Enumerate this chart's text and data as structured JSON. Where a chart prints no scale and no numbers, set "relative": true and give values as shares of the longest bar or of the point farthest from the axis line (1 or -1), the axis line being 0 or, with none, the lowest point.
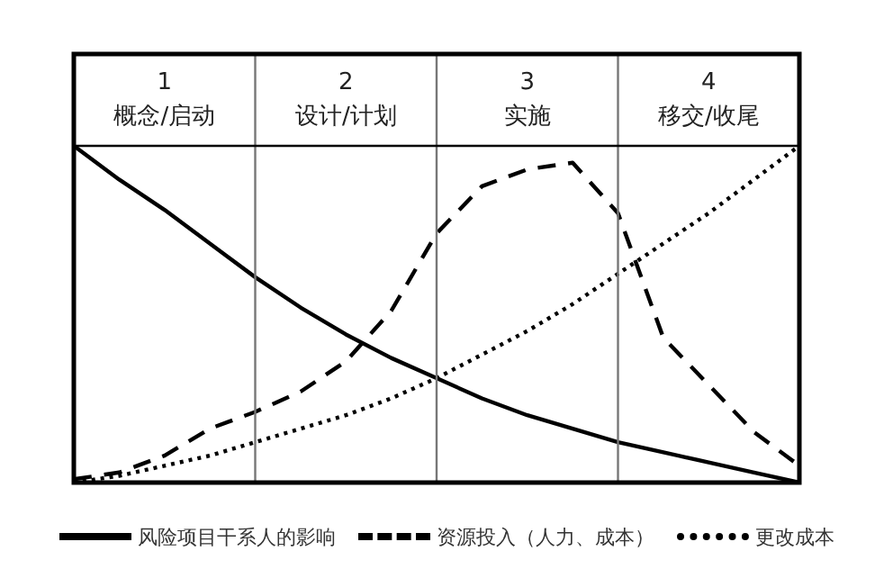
{
  "chart_data": {
    "type": "line",
    "relative": true,
    "tick_labels": false,
    "grid": "x",
    "marker": "none",
    "legend": "bottom",
    "categories": [
      null,
      null,
      null,
      null,
      null,
      null,
      null,
      null,
      null,
      null,
      null,
      null,
      null,
      null,
      null,
      null,
      null
    ],
    "annotations": [
      "1\n概念/启动",
      "2\n设计/计划",
      "3\n实施",
      "4\n移交/收尾"
    ],
    "series": [
      {
        "name": "风险项目干系人的影响",
        "color": "#000000",
        "line_style": "solid",
        "values": [
          1,
          0.9,
          0.81,
          0.71,
          0.61,
          0.52,
          0.44,
          0.37,
          0.31,
          0.25,
          0.2,
          0.16,
          0.12,
          0.09,
          0.06,
          0.03,
          0
        ]
      },
      {
        "name": "资源投入（人力、成本）",
        "color": "#000000",
        "line_style": "dashed",
        "values": [
          0.01,
          0.03,
          0.08,
          0.16,
          0.21,
          0.27,
          0.36,
          0.51,
          0.74,
          0.88,
          0.93,
          0.95,
          0.8,
          0.43,
          0.29,
          0.15,
          0.05
        ]
      },
      {
        "name": "更改成本",
        "color": "#000000",
        "line_style": "dotted",
        "values": [
          0,
          0.02,
          0.05,
          0.08,
          0.12,
          0.16,
          0.2,
          0.25,
          0.31,
          0.38,
          0.45,
          0.53,
          0.62,
          0.71,
          0.8,
          0.9,
          1
        ]
      }
    ]
  }
}
